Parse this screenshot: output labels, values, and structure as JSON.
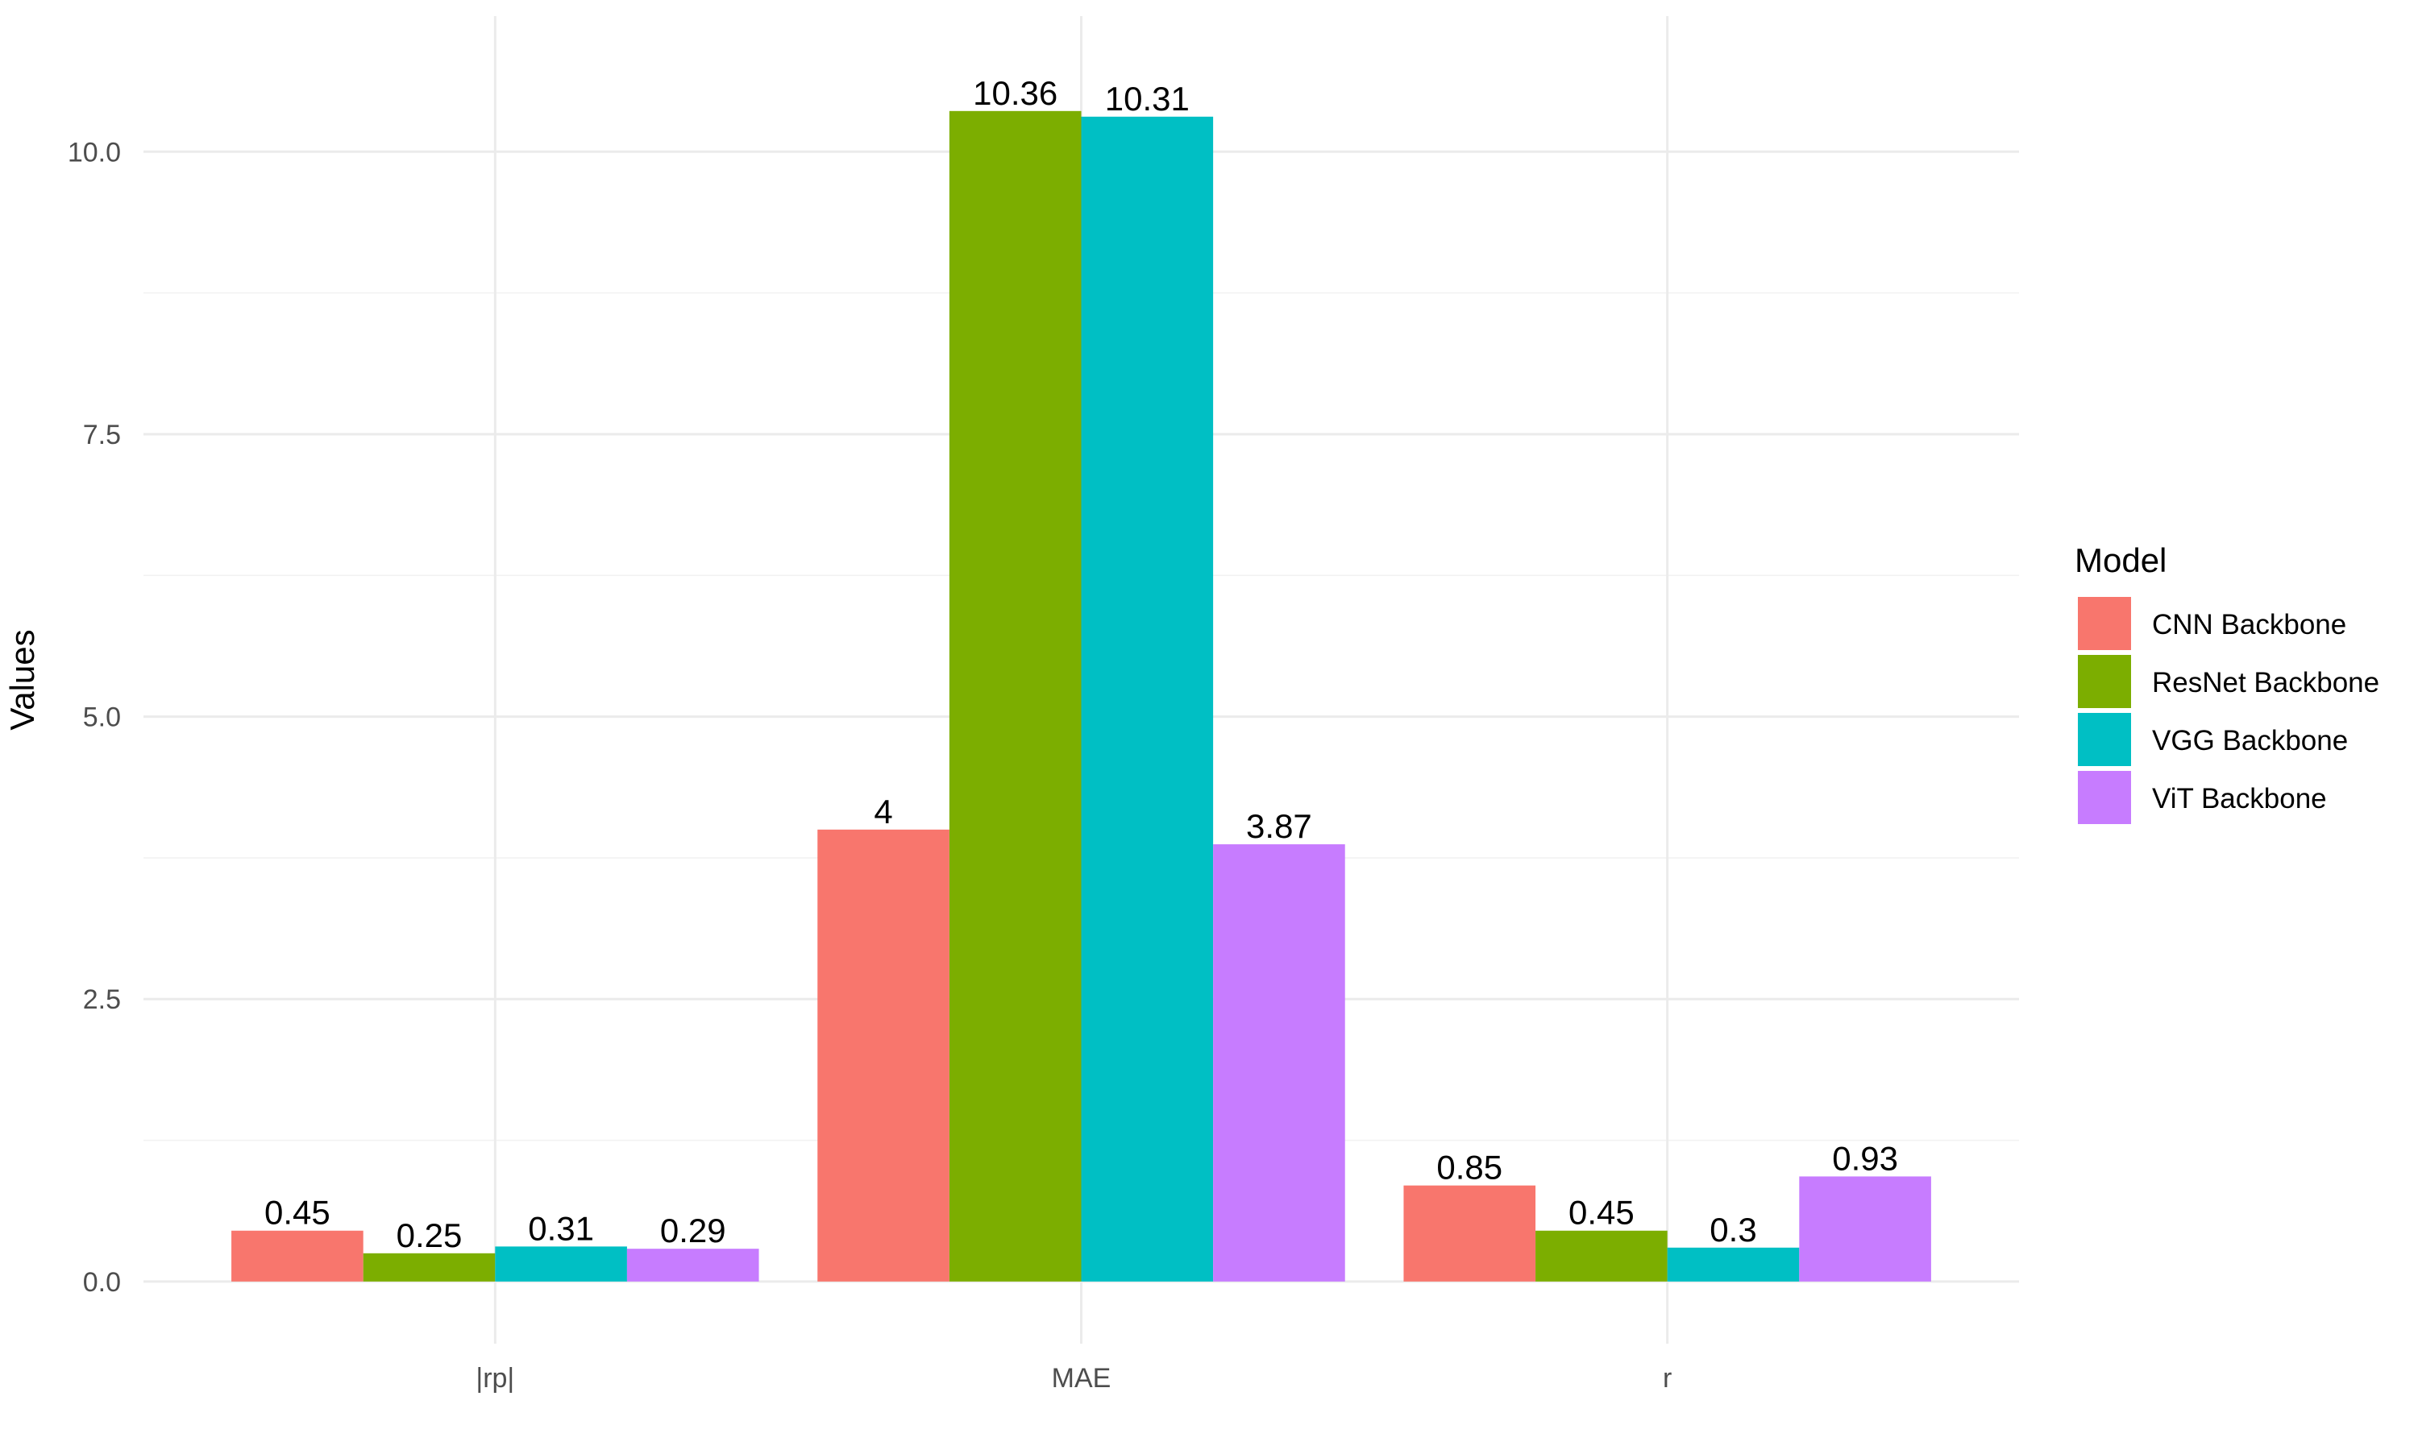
{
  "chart_data": {
    "type": "bar",
    "categories": [
      "|rp|",
      "MAE",
      "r"
    ],
    "series": [
      {
        "name": "CNN Backbone",
        "color": "#F8766D",
        "values": [
          0.45,
          4,
          0.85
        ],
        "labels": [
          "0.45",
          "4",
          "0.85"
        ]
      },
      {
        "name": "ResNet Backbone",
        "color": "#7CAE00",
        "values": [
          0.25,
          10.36,
          0.45
        ],
        "labels": [
          "0.25",
          "10.36",
          "0.45"
        ]
      },
      {
        "name": "VGG Backbone",
        "color": "#00BFC4",
        "values": [
          0.31,
          10.31,
          0.3
        ],
        "labels": [
          "0.31",
          "10.31",
          "0.3"
        ]
      },
      {
        "name": "ViT Backbone",
        "color": "#C77CFF",
        "values": [
          0.29,
          3.87,
          0.93
        ],
        "labels": [
          "0.29",
          "3.87",
          "0.93"
        ]
      }
    ],
    "title": "",
    "xlabel": "",
    "ylabel": "Values",
    "ylim": [
      -0.55,
      11.2
    ],
    "yticks": [
      0,
      2.5,
      5,
      7.5,
      10
    ],
    "ytick_labels": [
      "0.0",
      "2.5",
      "5.0",
      "7.5",
      "10.0"
    ],
    "grid": true,
    "legend": {
      "title": "Model",
      "position": "right"
    }
  }
}
